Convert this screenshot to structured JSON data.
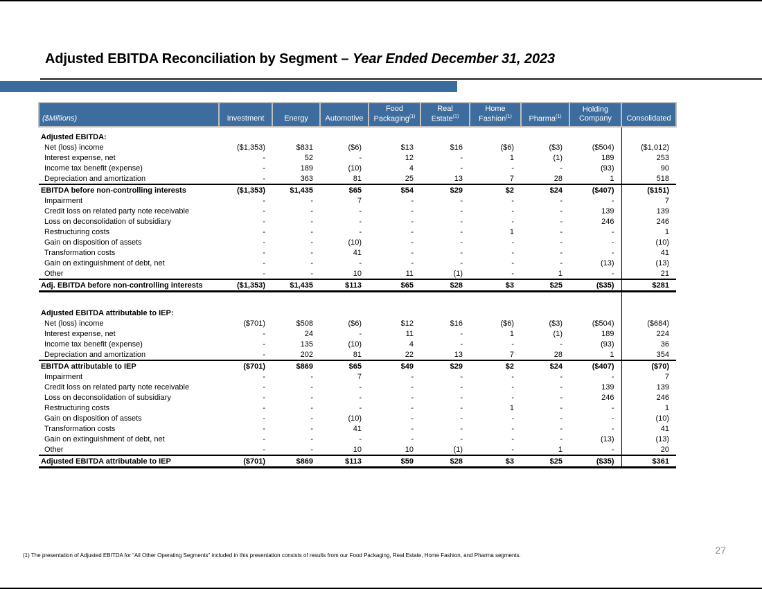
{
  "page": {
    "title_main": "Adjusted EBITDA Reconciliation by Segment – ",
    "title_emphasis": "Year Ended December 31, 2023",
    "page_number": "27",
    "footnote": "(1) The presentation of Adjusted EBITDA for “All Other Operating Segments” included in this presentation consists of results from our Food Packaging, Real Estate, Home Fashion, and Pharma segments."
  },
  "colors": {
    "header_blue": "#3D6C9E",
    "accent_blue": "#3C6B9D",
    "separator_gray": "#BFBFBF",
    "page_number_gray": "#8C8C8C"
  },
  "table": {
    "unit_label": "($Millions)",
    "columns": [
      {
        "line1": "",
        "line2": "Investment",
        "sup": ""
      },
      {
        "line1": "",
        "line2": "Energy",
        "sup": ""
      },
      {
        "line1": "",
        "line2": "Automotive",
        "sup": ""
      },
      {
        "line1": "Food",
        "line2": "Packaging",
        "sup": "(1)"
      },
      {
        "line1": "Real",
        "line2": "Estate",
        "sup": "(1)"
      },
      {
        "line1": "Home",
        "line2": "Fashion",
        "sup": "(1)"
      },
      {
        "line1": "",
        "line2": "Pharma",
        "sup": "(1)"
      },
      {
        "line1": "Holding",
        "line2": "Company",
        "sup": ""
      },
      {
        "line1": "",
        "line2": "Consolidated",
        "sup": ""
      }
    ],
    "rows": [
      {
        "type": "spacer-top",
        "label": "",
        "values": [
          "",
          "",
          "",
          "",
          "",
          "",
          "",
          "",
          ""
        ]
      },
      {
        "type": "section",
        "label": "Adjusted EBITDA:",
        "values": [
          "",
          "",
          "",
          "",
          "",
          "",
          "",
          "",
          ""
        ]
      },
      {
        "type": "detail",
        "label": "Net (loss) income",
        "values": [
          "($1,353)",
          "$831",
          "($6)",
          "$13",
          "$16",
          "($6)",
          "($3)",
          "($504)",
          "($1,012)"
        ]
      },
      {
        "type": "detail",
        "label": "Interest expense, net",
        "values": [
          "-",
          "52",
          "-",
          "12",
          "-",
          "1",
          "(1)",
          "189",
          "253"
        ]
      },
      {
        "type": "detail",
        "label": "Income tax benefit (expense)",
        "values": [
          "-",
          "189",
          "(10)",
          "4",
          "-",
          "-",
          "-",
          "(93)",
          "90"
        ]
      },
      {
        "type": "detail",
        "label": "Depreciation and amortization",
        "values": [
          "-",
          "363",
          "81",
          "25",
          "13",
          "7",
          "28",
          "1",
          "518"
        ]
      },
      {
        "type": "subtotal",
        "label": "EBITDA before non-controlling interests",
        "values": [
          "($1,353)",
          "$1,435",
          "$65",
          "$54",
          "$29",
          "$2",
          "$24",
          "($407)",
          "($151)"
        ]
      },
      {
        "type": "detail",
        "label": "Impairment",
        "values": [
          "-",
          "-",
          "7",
          "-",
          "-",
          "-",
          "-",
          "-",
          "7"
        ]
      },
      {
        "type": "detail",
        "label": "Credit loss on related party note receivable",
        "values": [
          "-",
          "-",
          "-",
          "-",
          "-",
          "-",
          "-",
          "139",
          "139"
        ]
      },
      {
        "type": "detail",
        "label": "Loss on deconsolidation of subsidiary",
        "values": [
          "-",
          "-",
          "-",
          "-",
          "-",
          "-",
          "-",
          "246",
          "246"
        ]
      },
      {
        "type": "detail",
        "label": "Restructuring costs",
        "values": [
          "-",
          "-",
          "-",
          "-",
          "-",
          "1",
          "-",
          "-",
          "1"
        ]
      },
      {
        "type": "detail",
        "label": "Gain on disposition of assets",
        "values": [
          "-",
          "-",
          "(10)",
          "-",
          "-",
          "-",
          "-",
          "-",
          "(10)"
        ]
      },
      {
        "type": "detail",
        "label": "Transformation costs",
        "values": [
          "-",
          "-",
          "41",
          "-",
          "-",
          "-",
          "-",
          "-",
          "41"
        ]
      },
      {
        "type": "detail",
        "label": "Gain on extinguishment of debt, net",
        "values": [
          "-",
          "-",
          "-",
          "-",
          "-",
          "-",
          "-",
          "(13)",
          "(13)"
        ]
      },
      {
        "type": "detail",
        "label": "Other",
        "values": [
          "-",
          "-",
          "10",
          "11",
          "(1)",
          "-",
          "1",
          "-",
          "21"
        ]
      },
      {
        "type": "grandtotal",
        "label": "Adj. EBITDA before non-controlling interests",
        "values": [
          "($1,353)",
          "$1,435",
          "$113",
          "$65",
          "$28",
          "$3",
          "$25",
          "($35)",
          "$281"
        ]
      },
      {
        "type": "spacer",
        "label": "",
        "values": [
          "",
          "",
          "",
          "",
          "",
          "",
          "",
          "",
          ""
        ]
      },
      {
        "type": "section",
        "label": "Adjusted EBITDA attributable to IEP:",
        "values": [
          "",
          "",
          "",
          "",
          "",
          "",
          "",
          "",
          ""
        ]
      },
      {
        "type": "detail",
        "label": "Net (loss) income",
        "values": [
          "($701)",
          "$508",
          "($6)",
          "$12",
          "$16",
          "($6)",
          "($3)",
          "($504)",
          "($684)"
        ]
      },
      {
        "type": "detail",
        "label": "Interest expense, net",
        "values": [
          "-",
          "24",
          "-",
          "11",
          "-",
          "1",
          "(1)",
          "189",
          "224"
        ]
      },
      {
        "type": "detail",
        "label": "Income tax benefit (expense)",
        "values": [
          "-",
          "135",
          "(10)",
          "4",
          "-",
          "-",
          "-",
          "(93)",
          "36"
        ]
      },
      {
        "type": "detail",
        "label": "Depreciation and amortization",
        "values": [
          "-",
          "202",
          "81",
          "22",
          "13",
          "7",
          "28",
          "1",
          "354"
        ]
      },
      {
        "type": "subtotal",
        "label": "EBITDA attributable to IEP",
        "values": [
          "($701)",
          "$869",
          "$65",
          "$49",
          "$29",
          "$2",
          "$24",
          "($407)",
          "($70)"
        ]
      },
      {
        "type": "detail",
        "label": "Impairment",
        "values": [
          "-",
          "-",
          "7",
          "-",
          "-",
          "-",
          "-",
          "-",
          "7"
        ]
      },
      {
        "type": "detail",
        "label": "Credit loss on related party note receivable",
        "values": [
          "-",
          "-",
          "-",
          "-",
          "-",
          "-",
          "-",
          "139",
          "139"
        ]
      },
      {
        "type": "detail",
        "label": "Loss on deconsolidation of subsidiary",
        "values": [
          "-",
          "-",
          "-",
          "-",
          "-",
          "-",
          "-",
          "246",
          "246"
        ]
      },
      {
        "type": "detail",
        "label": "Restructuring costs",
        "values": [
          "-",
          "-",
          "-",
          "-",
          "-",
          "1",
          "-",
          "-",
          "1"
        ]
      },
      {
        "type": "detail",
        "label": "Gain on disposition of assets",
        "values": [
          "-",
          "-",
          "(10)",
          "-",
          "-",
          "-",
          "-",
          "-",
          "(10)"
        ]
      },
      {
        "type": "detail",
        "label": "Transformation costs",
        "values": [
          "-",
          "-",
          "41",
          "-",
          "-",
          "-",
          "-",
          "-",
          "41"
        ]
      },
      {
        "type": "detail",
        "label": "Gain on extinguishment of debt, net",
        "values": [
          "-",
          "-",
          "-",
          "-",
          "-",
          "-",
          "-",
          "(13)",
          "(13)"
        ]
      },
      {
        "type": "detail",
        "label": "Other",
        "values": [
          "-",
          "-",
          "10",
          "10",
          "(1)",
          "-",
          "1",
          "-",
          "20"
        ]
      },
      {
        "type": "grandtotal",
        "label": "Adjusted EBITDA attributable to IEP",
        "values": [
          "($701)",
          "$869",
          "$113",
          "$59",
          "$28",
          "$3",
          "$25",
          "($35)",
          "$361"
        ]
      }
    ]
  }
}
